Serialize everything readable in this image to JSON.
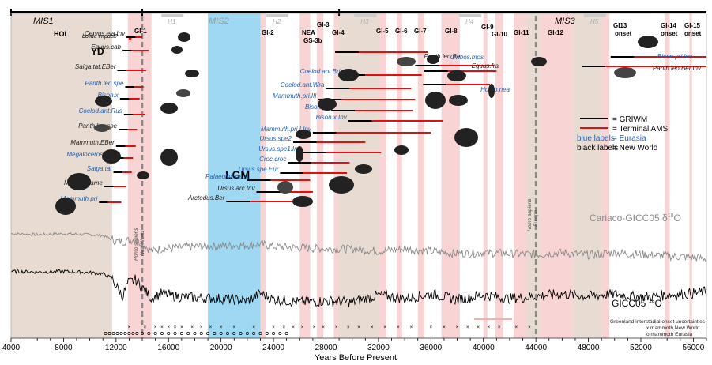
{
  "chart_data": {
    "type": "line",
    "xlabel": "Years Before Present",
    "xlim": [
      4000,
      57000
    ],
    "xticks": [
      4000,
      8000,
      12000,
      16000,
      20000,
      24000,
      28000,
      32000,
      36000,
      40000,
      44000,
      48000,
      52000,
      56000
    ],
    "colors": {
      "griwm": "#000000",
      "ams": "#e01010",
      "eurasia": "#1f5fb3",
      "newworld": "#222222",
      "lgm": "#9fd8f2",
      "gi_band": "#f7c9c9",
      "stadial": "#e7dbd2",
      "cariaco": "#8a8a8a",
      "gicc": "#000000"
    },
    "stages": [
      {
        "label": "MIS1",
        "start": 4000,
        "end": 14000
      },
      {
        "label": "MIS2",
        "start": 14000,
        "end": 29000
      },
      {
        "label": "MIS3",
        "start": 29000,
        "end": 57000
      }
    ],
    "heinrich": [
      {
        "label": "H1",
        "x": 16300
      },
      {
        "label": "H2",
        "x": 24300
      },
      {
        "label": "H3",
        "x": 31000
      },
      {
        "label": "H4",
        "x": 39000
      },
      {
        "label": "H5",
        "x": 48500
      }
    ],
    "period_labels": [
      {
        "label": "HOL",
        "x": 8000
      },
      {
        "label": "YD",
        "x": 12500
      },
      {
        "label": "LGM",
        "x": 21000
      },
      {
        "label": "bolide impact?",
        "x": 12800
      }
    ],
    "lgm": [
      19000,
      23000
    ],
    "interstadials": [
      {
        "label": "GI-1",
        "x": 14600,
        "start": 12900,
        "end": 14700
      },
      {
        "label": "GI-2",
        "x": 23300,
        "start": 22900,
        "end": 23400
      },
      {
        "label": "NEA GS-3b",
        "x": 26300,
        "start": 26000,
        "end": 26800
      },
      {
        "label": "GI-3",
        "x": 27500,
        "start": 27300,
        "end": 27800
      },
      {
        "label": "GI-4",
        "x": 28700,
        "start": 28600,
        "end": 28900
      },
      {
        "label": "GI-5",
        "x": 32300,
        "start": 32000,
        "end": 32600
      },
      {
        "label": "GI-6",
        "x": 33600,
        "start": 33400,
        "end": 33800
      },
      {
        "label": "GI-7",
        "x": 35400,
        "start": 35000,
        "end": 35500
      },
      {
        "label": "GI-8",
        "x": 38000,
        "start": 36800,
        "end": 38200
      },
      {
        "label": "GI-9",
        "x": 40100,
        "start": 40000,
        "end": 40300
      },
      {
        "label": "GI-10",
        "x": 41300,
        "start": 40900,
        "end": 41500
      },
      {
        "label": "GI-11",
        "x": 42800,
        "start": 42300,
        "end": 43300
      },
      {
        "label": "GI-12",
        "x": 46400,
        "start": 44300,
        "end": 46800
      },
      {
        "label": "GI13 onset",
        "x": 49300,
        "start": 49000,
        "end": 49600
      },
      {
        "label": "GI-14 onset",
        "x": 54000,
        "start": 53800,
        "end": 54200
      },
      {
        "label": "GI-15 onset",
        "x": 55800,
        "start": 55700,
        "end": 55900
      }
    ],
    "stadials": [
      {
        "start": 4000,
        "end": 11700
      },
      {
        "start": 28900,
        "end": 32000
      },
      {
        "start": 43300,
        "end": 44300
      },
      {
        "start": 46800,
        "end": 49000
      }
    ],
    "human_arrival": [
      {
        "label": "Homo sapiens New World",
        "x": 14000
      },
      {
        "label": "Homo sapiens Europe",
        "x": 44000
      }
    ],
    "series": [
      {
        "name": "Cervus.ela.Inv",
        "region": "newworld",
        "row": 0,
        "griwm": 13500,
        "ams": 14000
      },
      {
        "name": "Equus.cab",
        "region": "newworld",
        "row": 1,
        "griwm": 13200,
        "ams": 14500
      },
      {
        "name": "Saiga.tat.EBer",
        "region": "newworld",
        "row": 2,
        "griwm": 12800,
        "ams": 14300
      },
      {
        "name": "Panth.leo.spe",
        "region": "eurasia",
        "row": 3,
        "griwm": 13400,
        "ams": 14100
      },
      {
        "name": "Bison.x",
        "region": "eurasia",
        "row": 4,
        "griwm": 13000,
        "ams": 13800
      },
      {
        "name": "Coelod.ant.Rus",
        "region": "eurasia",
        "row": 5,
        "griwm": 13300,
        "ams": 14200
      },
      {
        "name": "Panth.leo.spe",
        "region": "newworld",
        "row": 6,
        "griwm": 12900,
        "ams": 13600
      },
      {
        "name": "Mammuth.EBer",
        "region": "newworld",
        "row": 7,
        "griwm": 12700,
        "ams": 13500
      },
      {
        "name": "Megaloceros.gig",
        "region": "eurasia",
        "row": 8,
        "griwm": 12600,
        "ams": 13300
      },
      {
        "name": "Saiga.tat",
        "region": "eurasia",
        "row": 9,
        "griwm": 12500,
        "ams": 13200
      },
      {
        "name": "Mammut.ame",
        "region": "newworld",
        "row": 10,
        "griwm": 11800,
        "ams": 12800
      },
      {
        "name": "Mammuth.pri",
        "region": "eurasia",
        "row": 11,
        "griwm": 11400,
        "ams": 12400
      },
      {
        "name": "Panth.leo.Ber",
        "region": "newworld",
        "row": 12,
        "griwm": 30500,
        "ams": 35800
      },
      {
        "name": "Ovibos.mos",
        "region": "eurasia",
        "row": 13,
        "griwm": 36600,
        "ams": 40800
      },
      {
        "name": "Equus.fra",
        "region": "newworld",
        "row": 14,
        "griwm": 37300,
        "ams": 41000
      },
      {
        "name": "Homo.nea",
        "region": "eurasia",
        "row": 15,
        "griwm": 37200,
        "ams": 40500
      },
      {
        "name": "Coelod.ant.Bri",
        "region": "eurasia",
        "row": 16,
        "griwm": 31000,
        "ams": 35300
      },
      {
        "name": "Coelod.ant.Wra",
        "region": "eurasia",
        "row": 17,
        "griwm": 29800,
        "ams": 34500
      },
      {
        "name": "Mammuth.pri.III",
        "region": "eurasia",
        "row": 18,
        "griwm": 29200,
        "ams": 34800
      },
      {
        "name": "Bison.pri",
        "region": "eurasia",
        "row": 19,
        "griwm": 30200,
        "ams": 34600
      },
      {
        "name": "Bison.x.Inv",
        "region": "eurasia",
        "row": 20,
        "griwm": 31500,
        "ams": 36900
      },
      {
        "name": "Mammuth.pri.I.Inv",
        "region": "eurasia",
        "row": 21,
        "griwm": 28800,
        "ams": 36000
      },
      {
        "name": "Ursus.spe2",
        "region": "eurasia",
        "row": 22,
        "griwm": 27300,
        "ams": 31000
      },
      {
        "name": "Ursus.spe1.Inv",
        "region": "eurasia",
        "row": 23,
        "griwm": 28000,
        "ams": 32200
      },
      {
        "name": "Croc.croc",
        "region": "eurasia",
        "row": 24,
        "griwm": 26900,
        "ams": 29800
      },
      {
        "name": "Ursus.spe.Eur",
        "region": "eurasia",
        "row": 25,
        "griwm": 26300,
        "ams": 29600
      },
      {
        "name": "Palaeolox.nau",
        "region": "eurasia",
        "row": 26,
        "griwm": 23800,
        "ams": 26800
      },
      {
        "name": "Ursus.arc.Inv",
        "region": "newworld",
        "row": 27,
        "griwm": 24500,
        "ams": 27000
      },
      {
        "name": "Arctodus.Ber",
        "region": "newworld",
        "row": 28,
        "griwm": 22200,
        "ams": 26300
      },
      {
        "name": "Bison.pri.Inv",
        "region": "eurasia",
        "row": 29,
        "griwm": 51500,
        "ams": 57000
      },
      {
        "name": "Panth.leo.Ber.Inv",
        "region": "newworld",
        "row": 30,
        "griwm": 49300,
        "ams": 57000
      }
    ],
    "legend": {
      "griwm": "= GRIWM",
      "ams": "= Terminal AMS",
      "blue": "blue labels",
      "blue_eq": "= Eurasia",
      "black": "black labels",
      "black_eq": "= New World"
    },
    "curves": [
      {
        "name": "Cariaco-GICC05 δ18O",
        "label": "Cariaco-GICC05 δ",
        "sup": "18",
        "tail": "O",
        "color": "#8a8a8a",
        "x": [
          4000,
          6000,
          8000,
          10000,
          11000,
          11700,
          12000,
          12500,
          12900,
          13500,
          14700,
          15500,
          16500,
          18000,
          20000,
          22000,
          23000,
          24000,
          26000,
          28000,
          30000,
          32000,
          34000,
          36000,
          38000,
          40000,
          42000,
          44000,
          46000,
          48000,
          50000,
          52000,
          54000,
          56000,
          57000
        ],
        "y": [
          0.82,
          0.8,
          0.82,
          0.8,
          0.78,
          0.7,
          0.66,
          0.65,
          0.68,
          0.7,
          0.46,
          0.5,
          0.52,
          0.55,
          0.56,
          0.58,
          0.6,
          0.55,
          0.52,
          0.5,
          0.5,
          0.45,
          0.5,
          0.45,
          0.4,
          0.42,
          0.4,
          0.38,
          0.42,
          0.37,
          0.42,
          0.38,
          0.35,
          0.32,
          0.3
        ]
      },
      {
        "name": "GICC05 δ18O",
        "label": "GICC05 ",
        "sup": "18",
        "tail": "O",
        "color": "#000000",
        "x": [
          4000,
          6000,
          8000,
          10000,
          11000,
          11700,
          12000,
          12500,
          12900,
          13500,
          14700,
          15500,
          16500,
          18000,
          20000,
          22000,
          23000,
          24000,
          26000,
          28000,
          30000,
          32000,
          34000,
          36000,
          38000,
          40000,
          42000,
          44000,
          46000,
          48000,
          50000,
          52000,
          54000,
          56000,
          57000
        ],
        "y": [
          0.82,
          0.81,
          0.82,
          0.8,
          0.78,
          0.7,
          0.58,
          0.4,
          0.62,
          0.68,
          0.36,
          0.45,
          0.4,
          0.38,
          0.36,
          0.32,
          0.45,
          0.35,
          0.3,
          0.32,
          0.3,
          0.42,
          0.36,
          0.44,
          0.34,
          0.42,
          0.36,
          0.4,
          0.44,
          0.4,
          0.44,
          0.38,
          0.42,
          0.45,
          0.48
        ]
      }
    ],
    "onset_rows": {
      "griwm_label": "Greenland interstadial onset uncertainties",
      "x_label": "x mammoth New World",
      "o_label": "o mammoth Eurasia",
      "x_marks": [
        13000,
        14200,
        15000,
        15500,
        16000,
        16500,
        17000,
        17800,
        18500,
        19200,
        20000,
        21000,
        22500,
        24000,
        24800,
        25500,
        26200,
        27100,
        27800,
        28800,
        29700,
        30500,
        31500,
        32500,
        33500,
        34500,
        36000,
        37000,
        38000,
        38800,
        39600,
        40400,
        41200,
        42500,
        43500
      ],
      "o_marks": [
        11200,
        11500,
        11800,
        12100,
        12400,
        12700,
        13000,
        13300,
        13600,
        14000,
        14500,
        15000,
        15500,
        16000,
        16500,
        17000,
        17500,
        18000,
        18500,
        19000,
        19500,
        20000,
        20500,
        21000,
        21500,
        22000,
        22500,
        23000,
        23500,
        24000,
        24500,
        25000
      ]
    }
  }
}
